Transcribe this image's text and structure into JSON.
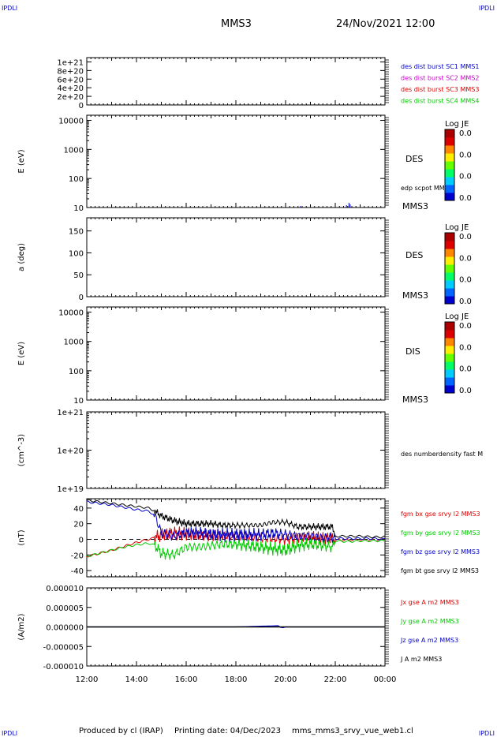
{
  "header": {
    "corner_tl": "IPDLI",
    "corner_tr": "IPDLI",
    "corner_bl": "IPDLI",
    "corner_br": "IPDLI",
    "spacecraft": "MMS3",
    "datetime": "24/Nov/2021 12:00"
  },
  "footer": {
    "produced": "Produced by cl (IRAP)",
    "printing": "Printing date: 04/Dec/2023",
    "file": "mms_mms3_srvy_vue_web1.cl"
  },
  "colors": {
    "black": "#000000",
    "blue": "#0000cc",
    "red": "#dd0000",
    "green": "#00cc00",
    "magenta": "#cc00cc"
  },
  "time_axis": {
    "ticks": [
      "12:00",
      "14:00",
      "16:00",
      "18:00",
      "20:00",
      "22:00",
      "00:00"
    ],
    "hours": [
      12,
      14,
      16,
      18,
      20,
      22,
      24
    ]
  },
  "chart_data": [
    {
      "type": "line",
      "id": "panel1",
      "ylabel": "",
      "ylim": [
        0,
        1.1e+21
      ],
      "yticks": [
        "1e+21",
        "8e+20",
        "6e+20",
        "4e+20",
        "2e+20",
        "0"
      ],
      "ytick_values": [
        1e+21,
        8e+20,
        6e+20,
        4e+20,
        2e+20,
        0
      ],
      "reference_line": 0,
      "legend": [
        {
          "label": "des dist burst SC1 MMS1",
          "color": "#0000cc"
        },
        {
          "label": "des dist burst SC2 MMS2",
          "color": "#cc00cc"
        },
        {
          "label": "des dist burst SC3 MMS3",
          "color": "#dd0000"
        },
        {
          "label": "des dist burst SC4 MMS4",
          "color": "#00cc00"
        }
      ]
    },
    {
      "type": "heatmap",
      "id": "panel2",
      "ylabel": "E (eV)",
      "scale": "log",
      "ylim": [
        10,
        15000
      ],
      "yticks": [
        "10000",
        "1000",
        "100",
        "10"
      ],
      "ytick_values": [
        10000,
        1000,
        100,
        10
      ],
      "side_label": "DES",
      "side_label2": "edp scpot MMS3",
      "sc_label": "MMS3",
      "colorbar": {
        "title": "Log JE",
        "ticks": [
          "0.0",
          "0.0",
          "0.0",
          "0.0"
        ]
      }
    },
    {
      "type": "heatmap",
      "id": "panel3",
      "ylabel": "a (deg)",
      "ylim": [
        0,
        180
      ],
      "yticks": [
        "150",
        "100",
        "50",
        "0"
      ],
      "ytick_values": [
        150,
        100,
        50,
        0
      ],
      "side_label": "DES",
      "sc_label": "MMS3",
      "colorbar": {
        "title": "Log JE",
        "ticks": [
          "0.0",
          "0.0",
          "0.0",
          "0.0"
        ]
      }
    },
    {
      "type": "heatmap",
      "id": "panel4",
      "ylabel": "E (eV)",
      "scale": "log",
      "ylim": [
        10,
        15000
      ],
      "yticks": [
        "10000",
        "1000",
        "100",
        "10"
      ],
      "ytick_values": [
        10000,
        1000,
        100,
        10
      ],
      "side_label": "DIS",
      "sc_label": "MMS3",
      "colorbar": {
        "title": "Log JE",
        "ticks": [
          "0.0",
          "0.0",
          "0.0",
          "0.0"
        ]
      }
    },
    {
      "type": "line",
      "id": "panel5",
      "ylabel": "(cm^-3)",
      "scale": "log",
      "ylim": [
        1e+19,
        1e+21
      ],
      "yticks": [
        "1e+21",
        "1e+20",
        "1e+19"
      ],
      "ytick_values": [
        1e+21,
        1e+20,
        1e+19
      ],
      "legend": [
        {
          "label": "des numberdensity fast M",
          "color": "#000000"
        }
      ]
    },
    {
      "type": "line",
      "id": "panel6",
      "ylabel": "(nT)",
      "ylim": [
        -48,
        52
      ],
      "yticks": [
        "40",
        "20",
        "0",
        "-20",
        "-40"
      ],
      "ytick_values": [
        40,
        20,
        0,
        -20,
        -40
      ],
      "reference_line": 0,
      "x_hours": [
        12,
        12.5,
        13,
        13.5,
        14,
        14.5,
        14.75,
        15,
        15.5,
        16,
        16.5,
        17,
        17.5,
        18,
        18.5,
        19,
        19.5,
        20,
        20.5,
        21,
        21.5,
        21.9,
        22,
        22.5,
        23,
        23.5,
        24
      ],
      "series": [
        {
          "name": "fgm bx gse srvy l2 MMS3",
          "color": "#dd0000",
          "values": [
            -22,
            -18,
            -14,
            -9,
            -4,
            0,
            2,
            6,
            8,
            7,
            6,
            5,
            5,
            4,
            3,
            2,
            1,
            0,
            2,
            2,
            1,
            2,
            -1,
            -1,
            -1,
            -1,
            -1
          ]
        },
        {
          "name": "fgm by gse srvy l2 MMS3",
          "color": "#00cc00",
          "values": [
            -22,
            -18,
            -14,
            -10,
            -7,
            -5,
            -8,
            -18,
            -20,
            -10,
            -10,
            -8,
            -6,
            -6,
            -8,
            -10,
            -12,
            -14,
            -8,
            -6,
            -8,
            -10,
            -2,
            -3,
            -2,
            -2,
            -2
          ]
        },
        {
          "name": "fgm bz gse srvy l2 MMS3",
          "color": "#0000cc",
          "values": [
            48,
            46,
            44,
            41,
            38,
            36,
            30,
            8,
            4,
            8,
            8,
            6,
            6,
            6,
            6,
            6,
            8,
            6,
            4,
            4,
            2,
            2,
            1,
            1,
            1,
            1,
            0
          ]
        },
        {
          "name": "fgm bt gse srvy l2 MMS3",
          "color": "#000000",
          "values": [
            50,
            48,
            46,
            44,
            42,
            40,
            36,
            30,
            24,
            20,
            20,
            20,
            18,
            18,
            18,
            18,
            22,
            22,
            16,
            16,
            16,
            16,
            4,
            4,
            4,
            3,
            3
          ]
        }
      ]
    },
    {
      "type": "line",
      "id": "panel7",
      "ylabel": "(A/m2)",
      "ylim": [
        -1e-05,
        1e-05
      ],
      "yticks": [
        "0.000010",
        "0.000005",
        "0.000000",
        "-0.000005",
        "-0.000010"
      ],
      "ytick_values": [
        1e-05,
        5e-06,
        0,
        -5e-06,
        -1e-05
      ],
      "x_hours": [
        12,
        14.5,
        16,
        18,
        19.7,
        19.85,
        20,
        22,
        22.2,
        22.8,
        24
      ],
      "series": [
        {
          "name": "Jx gse A m2 MMS3",
          "color": "#dd0000",
          "values": [
            0,
            0,
            0,
            0,
            0,
            0,
            0,
            0,
            0,
            0,
            0
          ]
        },
        {
          "name": "Jy gse A m2 MMS3",
          "color": "#00cc00",
          "values": [
            0,
            0,
            0,
            0,
            0,
            0,
            0,
            0,
            0,
            0,
            0
          ]
        },
        {
          "name": "Jz gse A m2 MMS3",
          "color": "#0000cc",
          "values": [
            0,
            0,
            0,
            0,
            3e-07,
            -3e-07,
            0,
            0,
            0,
            0,
            0
          ]
        },
        {
          "name": "J A m2 MMS3",
          "color": "#000000",
          "values": [
            0,
            0,
            0,
            0,
            0,
            0,
            0,
            0,
            0,
            0,
            0
          ]
        }
      ]
    }
  ]
}
